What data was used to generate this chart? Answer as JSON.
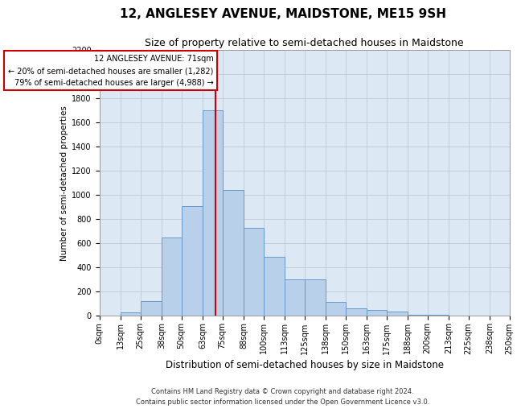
{
  "title": "12, ANGLESEY AVENUE, MAIDSTONE, ME15 9SH",
  "subtitle": "Size of property relative to semi-detached houses in Maidstone",
  "xlabel": "Distribution of semi-detached houses by size in Maidstone",
  "ylabel": "Number of semi-detached properties",
  "footer1": "Contains HM Land Registry data © Crown copyright and database right 2024.",
  "footer2": "Contains public sector information licensed under the Open Government Licence v3.0.",
  "annotation_title": "12 ANGLESEY AVENUE: 71sqm",
  "annotation_line1": "← 20% of semi-detached houses are smaller (1,282)",
  "annotation_line2": "79% of semi-detached houses are larger (4,988) →",
  "property_size": 71,
  "bin_edges": [
    0,
    13,
    25,
    38,
    50,
    63,
    75,
    88,
    100,
    113,
    125,
    138,
    150,
    163,
    175,
    188,
    200,
    213,
    225,
    238,
    250
  ],
  "bin_labels": [
    "0sqm",
    "13sqm",
    "25sqm",
    "38sqm",
    "50sqm",
    "63sqm",
    "75sqm",
    "88sqm",
    "100sqm",
    "113sqm",
    "125sqm",
    "138sqm",
    "150sqm",
    "163sqm",
    "175sqm",
    "188sqm",
    "200sqm",
    "213sqm",
    "225sqm",
    "238sqm",
    "250sqm"
  ],
  "counts": [
    0,
    25,
    120,
    650,
    910,
    1700,
    1040,
    730,
    490,
    300,
    300,
    115,
    60,
    45,
    35,
    10,
    5,
    2,
    1,
    0
  ],
  "bar_facecolor": "#b8d0ea",
  "bar_edgecolor": "#6699cc",
  "vline_color": "#cc0000",
  "box_edgecolor": "#cc0000",
  "ylim_max": 2200,
  "yticks": [
    0,
    200,
    400,
    600,
    800,
    1000,
    1200,
    1400,
    1600,
    1800,
    2000,
    2200
  ],
  "grid_color": "#c0c8d8",
  "bg_color": "#dde8f5",
  "title_fontsize": 11,
  "subtitle_fontsize": 9,
  "ylabel_fontsize": 7.5,
  "xlabel_fontsize": 8.5,
  "tick_fontsize": 7,
  "annotation_fontsize": 7,
  "footer_fontsize": 6
}
